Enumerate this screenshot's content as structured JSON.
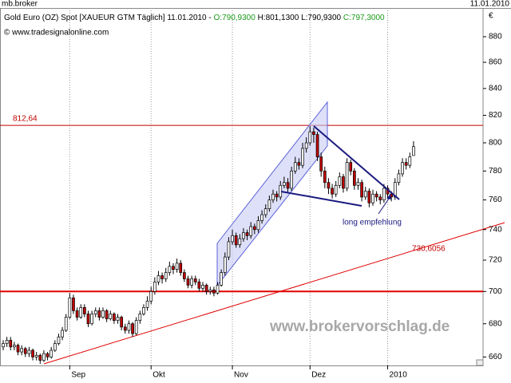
{
  "header": {
    "left": "mb.broker",
    "right": "11.01.2010"
  },
  "chart_data": {
    "type": "candlestick",
    "legend": {
      "title": "Gold Euro (OZ) Spot [XAUEUR GTM  Täglich] 11.01.2010 -",
      "open": "O:790,9300",
      "high": "H:801,1300",
      "low": "L:790,9300",
      "close": "C:797,3000",
      "source": "© www.tradesignalonline.com"
    },
    "y_unit": "€",
    "log_scale": true,
    "grid": "x",
    "up_color": "#ffffff",
    "down_color": "#c00000",
    "ylim": [
      655,
      903
    ],
    "yticks": [
      660,
      680,
      700,
      720,
      740,
      760,
      780,
      800,
      820,
      840,
      860,
      880
    ],
    "hlines": [
      {
        "value": 812.64,
        "label": "812,64",
        "color": "#c00000",
        "width": 1
      },
      {
        "value": 700,
        "color": "#e00000",
        "width": 2
      }
    ],
    "trendline_label": "730,6056",
    "annotation": "long empfehlung",
    "watermark": "www.brokervorschlag.de",
    "categories": [
      null,
      null,
      null,
      null,
      null,
      null,
      null,
      null,
      null,
      null,
      null,
      null,
      null,
      null,
      null,
      null,
      null,
      null,
      "Sep",
      null,
      null,
      null,
      null,
      null,
      null,
      null,
      null,
      null,
      null,
      null,
      null,
      null,
      null,
      null,
      null,
      null,
      null,
      null,
      null,
      null,
      "Okt",
      null,
      null,
      null,
      null,
      null,
      null,
      null,
      null,
      null,
      null,
      null,
      null,
      null,
      null,
      null,
      null,
      null,
      null,
      null,
      null,
      null,
      "Nov",
      null,
      null,
      null,
      null,
      null,
      null,
      null,
      null,
      null,
      null,
      null,
      null,
      null,
      null,
      null,
      null,
      null,
      null,
      null,
      null,
      "Dez",
      null,
      null,
      null,
      null,
      null,
      null,
      null,
      null,
      null,
      null,
      null,
      null,
      null,
      null,
      null,
      null,
      null,
      null,
      null,
      null,
      "2010",
      null,
      null,
      null,
      null,
      null,
      null,
      null
    ],
    "open": [
      666,
      668,
      670,
      666,
      667,
      663,
      665,
      662,
      664,
      660,
      661,
      658,
      662,
      660,
      664,
      668,
      672,
      676,
      684,
      696,
      688,
      684,
      690,
      686,
      680,
      686,
      688,
      684,
      688,
      683,
      686,
      682,
      684,
      678,
      676,
      680,
      674,
      682,
      686,
      690,
      694,
      700,
      706,
      710,
      708,
      712,
      716,
      714,
      718,
      712,
      708,
      704,
      708,
      706,
      702,
      704,
      700,
      701,
      699,
      704,
      712,
      722,
      732,
      736,
      730,
      734,
      738,
      736,
      742,
      740,
      746,
      750,
      754,
      760,
      764,
      762,
      770,
      772,
      768,
      780,
      786,
      784,
      796,
      800,
      808,
      806,
      790,
      780,
      772,
      768,
      764,
      770,
      776,
      768,
      786,
      780,
      770,
      772,
      762,
      766,
      758,
      764,
      762,
      760,
      768,
      764,
      762,
      772,
      778,
      786,
      784,
      790.93
    ],
    "high": [
      670,
      672,
      672,
      669,
      668,
      667,
      666,
      666,
      665,
      663,
      662,
      664,
      663,
      666,
      670,
      674,
      678,
      686,
      699,
      698,
      690,
      692,
      692,
      688,
      688,
      690,
      690,
      690,
      689,
      688,
      687,
      686,
      685,
      680,
      682,
      681,
      684,
      688,
      692,
      697,
      703,
      709,
      713,
      712,
      715,
      719,
      718,
      721,
      720,
      714,
      710,
      710,
      710,
      708,
      706,
      705,
      703,
      703,
      706,
      714,
      725,
      735,
      740,
      738,
      737,
      741,
      740,
      745,
      744,
      749,
      753,
      757,
      763,
      767,
      766,
      773,
      776,
      775,
      783,
      790,
      789,
      800,
      804,
      812,
      811,
      808,
      793,
      783,
      775,
      771,
      773,
      779,
      778,
      789,
      788,
      782,
      775,
      774,
      769,
      768,
      767,
      766,
      764,
      771,
      770,
      766,
      775,
      781,
      789,
      789,
      793,
      801.13
    ],
    "low": [
      664,
      666,
      664,
      664,
      661,
      661,
      660,
      660,
      658,
      658,
      656,
      657,
      658,
      659,
      663,
      667,
      670,
      675,
      683,
      686,
      682,
      683,
      684,
      678,
      679,
      684,
      682,
      683,
      681,
      682,
      680,
      680,
      676,
      674,
      674,
      672,
      673,
      680,
      685,
      688,
      692,
      698,
      704,
      705,
      706,
      710,
      711,
      712,
      710,
      706,
      702,
      702,
      704,
      700,
      700,
      698,
      698,
      697,
      698,
      703,
      710,
      720,
      730,
      728,
      728,
      732,
      733,
      734,
      737,
      738,
      744,
      748,
      752,
      758,
      759,
      760,
      768,
      765,
      766,
      778,
      781,
      782,
      793,
      798,
      800,
      787,
      776,
      768,
      764,
      761,
      762,
      768,
      765,
      766,
      777,
      767,
      767,
      759,
      760,
      755,
      756,
      759,
      757,
      758,
      761,
      759,
      760,
      770,
      776,
      781,
      782,
      790.93
    ],
    "close": [
      668,
      670,
      666,
      667,
      663,
      665,
      662,
      664,
      660,
      661,
      658,
      662,
      660,
      664,
      668,
      672,
      676,
      684,
      696,
      688,
      684,
      690,
      686,
      680,
      686,
      688,
      684,
      688,
      683,
      686,
      682,
      684,
      678,
      676,
      680,
      674,
      682,
      686,
      690,
      694,
      700,
      706,
      710,
      708,
      712,
      716,
      714,
      718,
      712,
      708,
      704,
      708,
      706,
      702,
      704,
      700,
      701,
      699,
      704,
      712,
      722,
      732,
      736,
      730,
      734,
      738,
      736,
      742,
      740,
      746,
      750,
      754,
      760,
      764,
      762,
      770,
      772,
      768,
      780,
      786,
      784,
      796,
      800,
      808,
      806,
      790,
      780,
      772,
      768,
      764,
      770,
      776,
      768,
      786,
      780,
      770,
      772,
      762,
      766,
      758,
      764,
      762,
      760,
      768,
      764,
      762,
      772,
      778,
      786,
      784,
      790,
      797.3
    ]
  }
}
